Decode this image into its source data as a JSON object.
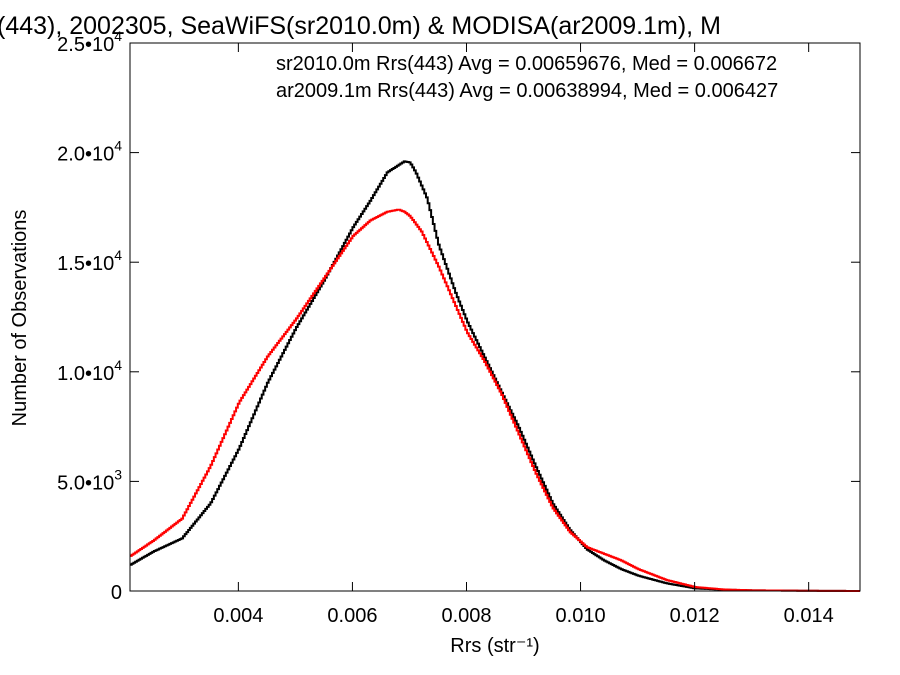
{
  "chart_data": {
    "type": "line",
    "title": "(443), 2002305, SeaWiFS(sr2010.0m) & MODISA(ar2009.1m), M",
    "xlabel": "Rrs (str⁻¹)",
    "ylabel": "Number of Observations",
    "xlim": [
      0.0021,
      0.0149
    ],
    "ylim": [
      0,
      25000
    ],
    "xticks": [
      {
        "value": 0.004,
        "label": "0.004"
      },
      {
        "value": 0.006,
        "label": "0.006"
      },
      {
        "value": 0.008,
        "label": "0.008"
      },
      {
        "value": 0.01,
        "label": "0.010"
      },
      {
        "value": 0.012,
        "label": "0.012"
      },
      {
        "value": 0.014,
        "label": "0.014"
      }
    ],
    "yticks": [
      {
        "value": 0,
        "mantissa": "0",
        "exp": ""
      },
      {
        "value": 5000,
        "mantissa": "5.0•10",
        "exp": "3"
      },
      {
        "value": 10000,
        "mantissa": "1.0•10",
        "exp": "4"
      },
      {
        "value": 15000,
        "mantissa": "1.5•10",
        "exp": "4"
      },
      {
        "value": 20000,
        "mantissa": "2.0•10",
        "exp": "4"
      },
      {
        "value": 25000,
        "mantissa": "2.5•10",
        "exp": "4"
      }
    ],
    "grid": false,
    "legend_placement": "top-right",
    "series": [
      {
        "name": "sr2010.0m Rrs(443) Avg = 0.00659676, Med = 0.006672",
        "color": "#000000",
        "x": [
          0.0021,
          0.0025,
          0.003,
          0.0035,
          0.004,
          0.0045,
          0.005,
          0.0055,
          0.006,
          0.0063,
          0.0066,
          0.0069,
          0.007,
          0.0071,
          0.0073,
          0.0075,
          0.0078,
          0.008,
          0.0083,
          0.0086,
          0.0089,
          0.0092,
          0.0095,
          0.0098,
          0.0101,
          0.0104,
          0.0107,
          0.011,
          0.0115,
          0.012,
          0.0125,
          0.013,
          0.014,
          0.0149
        ],
        "y": [
          1200,
          1800,
          2400,
          4000,
          6500,
          9500,
          12000,
          14200,
          16600,
          17800,
          19100,
          19600,
          19550,
          19100,
          17900,
          15800,
          13600,
          12300,
          10700,
          9100,
          7500,
          5700,
          4000,
          2800,
          1900,
          1400,
          1000,
          700,
          350,
          120,
          60,
          30,
          10,
          0
        ]
      },
      {
        "name": "ar2009.1m Rrs(443) Avg = 0.00638994, Med = 0.006427",
        "color": "#ff0000",
        "x": [
          0.0021,
          0.0025,
          0.003,
          0.0035,
          0.004,
          0.0045,
          0.005,
          0.0055,
          0.006,
          0.0063,
          0.0066,
          0.0068,
          0.0069,
          0.007,
          0.0072,
          0.0075,
          0.0078,
          0.008,
          0.0083,
          0.0086,
          0.0089,
          0.0092,
          0.0095,
          0.0098,
          0.0101,
          0.0104,
          0.0107,
          0.011,
          0.0115,
          0.012,
          0.0125,
          0.013,
          0.014,
          0.0149
        ],
        "y": [
          1600,
          2300,
          3300,
          5700,
          8600,
          10700,
          12400,
          14300,
          16200,
          16900,
          17300,
          17400,
          17300,
          17100,
          16400,
          14800,
          13000,
          11800,
          10500,
          9000,
          7200,
          5400,
          3800,
          2700,
          2000,
          1700,
          1400,
          1000,
          500,
          180,
          70,
          30,
          10,
          0
        ]
      }
    ]
  }
}
